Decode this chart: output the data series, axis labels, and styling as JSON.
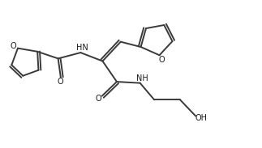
{
  "bg_color": "#ffffff",
  "line_color": "#3a3a3a",
  "text_color": "#1a1a1a",
  "line_width": 1.4,
  "font_size": 7.0,
  "figsize": [
    3.23,
    1.83
  ],
  "dpi": 100,
  "xlim": [
    0,
    10
  ],
  "ylim": [
    0,
    5.7
  ]
}
